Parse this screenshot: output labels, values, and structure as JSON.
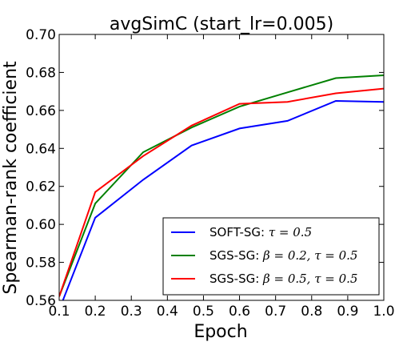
{
  "chart_data": {
    "type": "line",
    "title": "avgSimC (start_lr=0.005)",
    "xlabel": "Epoch",
    "ylabel": "Spearman-rank coefficient",
    "xlim": [
      0.1,
      1.0
    ],
    "ylim": [
      0.56,
      0.7
    ],
    "xticks": [
      0.1,
      0.2,
      0.3,
      0.4,
      0.5,
      0.6,
      0.7,
      0.8,
      0.9,
      1.0
    ],
    "xtick_labels": [
      "0.1",
      "0.2",
      "0.3",
      "0.4",
      "0.5",
      "0.6",
      "0.7",
      "0.8",
      "0.9",
      "1.0"
    ],
    "yticks": [
      0.56,
      0.58,
      0.6,
      0.62,
      0.64,
      0.66,
      0.68,
      0.7
    ],
    "ytick_labels": [
      "0.56",
      "0.58",
      "0.60",
      "0.62",
      "0.64",
      "0.66",
      "0.68",
      "0.70"
    ],
    "grid": false,
    "legend_position": "bottom-right",
    "x": [
      0.1,
      0.2,
      0.333,
      0.467,
      0.6,
      0.733,
      0.867,
      1.0
    ],
    "series": [
      {
        "name_prefix": "SOFT-SG: ",
        "name_math": "τ = 0.5",
        "color": "#0000ff",
        "values": [
          0.555,
          0.6035,
          0.6235,
          0.6415,
          0.6505,
          0.6545,
          0.665,
          0.6645
        ]
      },
      {
        "name_prefix": "SGS-SG: ",
        "name_math": "β = 0.2, τ = 0.5",
        "color": "#008000",
        "values": [
          0.562,
          0.611,
          0.638,
          0.651,
          0.662,
          0.6695,
          0.677,
          0.6785
        ]
      },
      {
        "name_prefix": "SGS-SG: ",
        "name_math": "β = 0.5, τ = 0.5",
        "color": "#ff0000",
        "values": [
          0.562,
          0.617,
          0.636,
          0.652,
          0.6635,
          0.6645,
          0.669,
          0.6715
        ]
      }
    ]
  }
}
